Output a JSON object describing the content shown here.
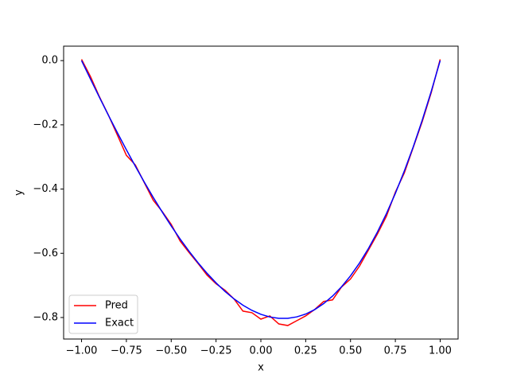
{
  "chart_data": {
    "type": "line",
    "xlabel": "x",
    "ylabel": "y",
    "x": [
      -1,
      -0.95,
      -0.9,
      -0.85,
      -0.8,
      -0.75,
      -0.7,
      -0.65,
      -0.6,
      -0.55,
      -0.5,
      -0.45,
      -0.4,
      -0.35,
      -0.3,
      -0.25,
      -0.2,
      -0.15,
      -0.1,
      -0.05,
      0,
      0.05,
      0.1,
      0.15,
      0.2,
      0.25,
      0.3,
      0.35,
      0.4,
      0.45,
      0.5,
      0.55,
      0.6,
      0.65,
      0.7,
      0.75,
      0.8,
      0.85,
      0.9,
      0.95,
      1
    ],
    "series": [
      {
        "name": "Pred",
        "color": "#ff0000",
        "values": [
          0.004,
          -0.05,
          -0.113,
          -0.17,
          -0.232,
          -0.295,
          -0.325,
          -0.38,
          -0.435,
          -0.47,
          -0.51,
          -0.562,
          -0.598,
          -0.632,
          -0.668,
          -0.695,
          -0.715,
          -0.742,
          -0.78,
          -0.785,
          -0.805,
          -0.795,
          -0.82,
          -0.825,
          -0.81,
          -0.795,
          -0.775,
          -0.75,
          -0.745,
          -0.705,
          -0.68,
          -0.64,
          -0.59,
          -0.54,
          -0.485,
          -0.41,
          -0.35,
          -0.27,
          -0.19,
          -0.1,
          0.004
        ]
      },
      {
        "name": "Exact",
        "color": "#0000ff",
        "values": [
          0,
          -0.0578,
          -0.1147,
          -0.1704,
          -0.2248,
          -0.2777,
          -0.329,
          -0.3785,
          -0.4261,
          -0.4716,
          -0.5149,
          -0.5558,
          -0.594,
          -0.6297,
          -0.6624,
          -0.6921,
          -0.7187,
          -0.7419,
          -0.7616,
          -0.7777,
          -0.79,
          -0.7984,
          -0.8026,
          -0.8026,
          -0.7981,
          -0.7892,
          -0.7754,
          -0.7568,
          -0.7332,
          -0.7043,
          -0.6701,
          -0.6305,
          -0.5851,
          -0.5339,
          -0.4768,
          -0.4136,
          -0.344,
          -0.2681,
          -0.1855,
          -0.0962,
          0
        ]
      }
    ],
    "xlim": [
      -1.1,
      1.1
    ],
    "ylim": [
      -0.867,
      0.045
    ],
    "xticks": [
      {
        "value": -1,
        "label": "−1.00"
      },
      {
        "value": -0.75,
        "label": "−0.75"
      },
      {
        "value": -0.5,
        "label": "−0.50"
      },
      {
        "value": -0.25,
        "label": "−0.25"
      },
      {
        "value": 0,
        "label": "0.00"
      },
      {
        "value": 0.25,
        "label": "0.25"
      },
      {
        "value": 0.5,
        "label": "0.50"
      },
      {
        "value": 0.75,
        "label": "0.75"
      },
      {
        "value": 1,
        "label": "1.00"
      }
    ],
    "yticks": [
      {
        "value": 0,
        "label": "0.0"
      },
      {
        "value": -0.2,
        "label": "−0.2"
      },
      {
        "value": -0.4,
        "label": "−0.4"
      },
      {
        "value": -0.6,
        "label": "−0.6"
      },
      {
        "value": -0.8,
        "label": "−0.8"
      }
    ],
    "legend": "lower left",
    "grid": false
  }
}
